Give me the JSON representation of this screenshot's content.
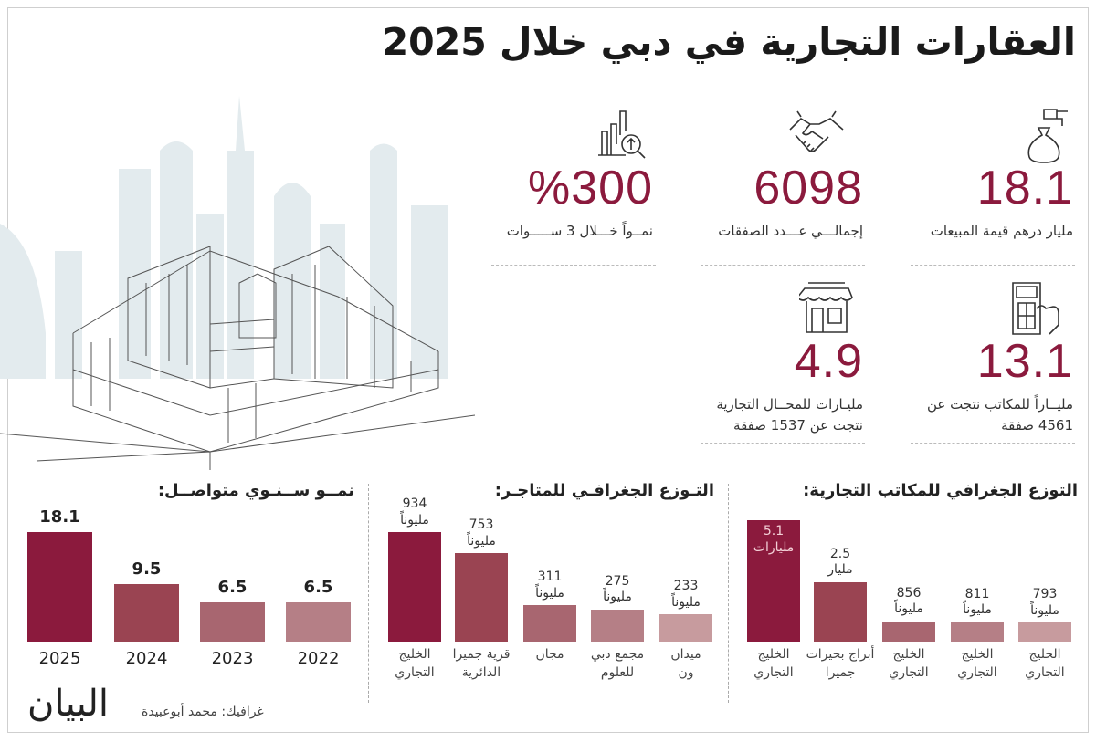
{
  "title": "العقارات التجارية في دبي خلال 2025",
  "stats": [
    {
      "icon": "money-bag-hand-icon",
      "value": "18.1",
      "label": "مليار درهم قيمة المبيعات"
    },
    {
      "icon": "handshake-icon",
      "value": "6098",
      "label": "إجمالـــي عـــدد الصفقات"
    },
    {
      "icon": "growth-chart-search-icon",
      "value": "%300",
      "label": "نمــواً خـــلال 3 ســـــوات"
    },
    {
      "icon": "office-building-touch-icon",
      "value": "13.1",
      "label": "مليــاراً للمكاتب نتجت عن\n4561 صفقة"
    },
    {
      "icon": "storefront-icon",
      "value": "4.9",
      "label": "مليـارات للمحــال التجارية\nنتجت عن 1537 صفقة"
    }
  ],
  "colors": {
    "accent": "#8b1a3d",
    "bars": [
      "#8b1a3d",
      "#9a4452",
      "#a86670",
      "#b57f86",
      "#c79b9e"
    ]
  },
  "chart_data": [
    {
      "type": "bar",
      "title": "التوزع الجغرافي للمكاتب التجارية:",
      "categories": [
        "الخليج\nالتجاري",
        "أبراج بحيرات\nجميرا",
        "الخليج\nالتجاري",
        "الخليج\nالتجاري",
        "الخليج\nالتجاري"
      ],
      "values": [
        5100,
        2500,
        856,
        811,
        793
      ],
      "value_labels": [
        "5.1\nمليارات",
        "2.5\nمليار",
        "856\nمليوناً",
        "811\nمليوناً",
        "793\nمليوناً"
      ]
    },
    {
      "type": "bar",
      "title": "التـوزع الجغرافـي للمتاجـر:",
      "categories": [
        "الخليج\nالتجاري",
        "قرية جميرا\nالدائرية",
        "مجان",
        "مجمع دبي\nللعلوم",
        "ميدان\nون"
      ],
      "values": [
        934,
        753,
        311,
        275,
        233
      ],
      "value_labels": [
        "934\nمليوناً",
        "753\nمليوناً",
        "311\nمليوناً",
        "275\nمليوناً",
        "233\nمليوناً"
      ]
    },
    {
      "type": "bar",
      "title": "نمــو ســنـوي متواصــل:",
      "categories": [
        "2025",
        "2024",
        "2023",
        "2022"
      ],
      "values": [
        18.1,
        9.5,
        6.5,
        6.5
      ],
      "value_labels": [
        "18.1",
        "9.5",
        "6.5",
        "6.5"
      ]
    }
  ],
  "footer": {
    "credit": "غرافيك: محمد أبوعبيدة",
    "logo": "البيان"
  }
}
